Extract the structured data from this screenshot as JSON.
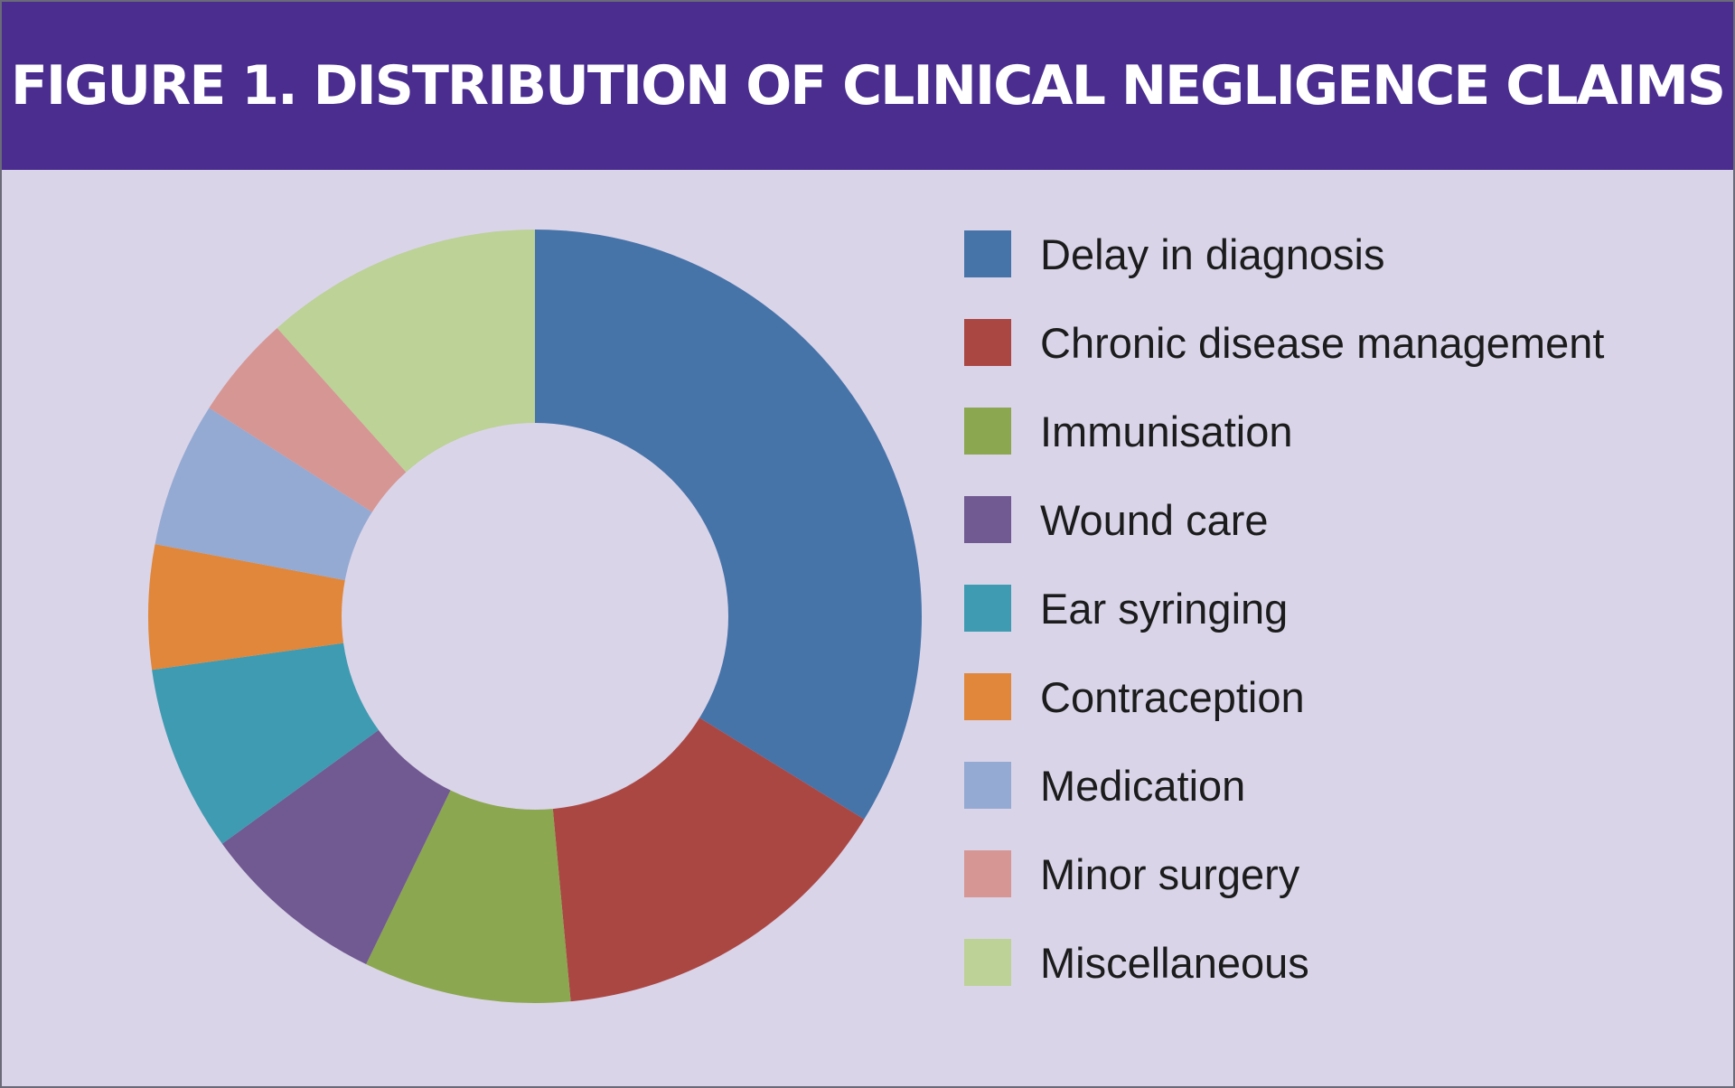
{
  "chart_data": {
    "type": "pie",
    "variant": "donut",
    "title": "FIGURE 1. DISTRIBUTION OF CLINICAL NEGLIGENCE CLAIMS",
    "categories": [
      "Delay in diagnosis",
      "Chronic disease management",
      "Immunisation",
      "Wound care",
      "Ear syringing",
      "Contraception",
      "Medication",
      "Minor surgery",
      "Miscellaneous"
    ],
    "values": [
      19.5,
      8.5,
      5.0,
      4.5,
      4.5,
      3.0,
      3.5,
      2.5,
      6.7
    ],
    "colors": [
      "#4674a9",
      "#aa4743",
      "#8ba74f",
      "#715991",
      "#3f9bb1",
      "#e0873b",
      "#94aad3",
      "#d69694",
      "#bcd297"
    ],
    "legend_position": "right",
    "start_angle_deg": 0,
    "direction": "clockwise"
  }
}
